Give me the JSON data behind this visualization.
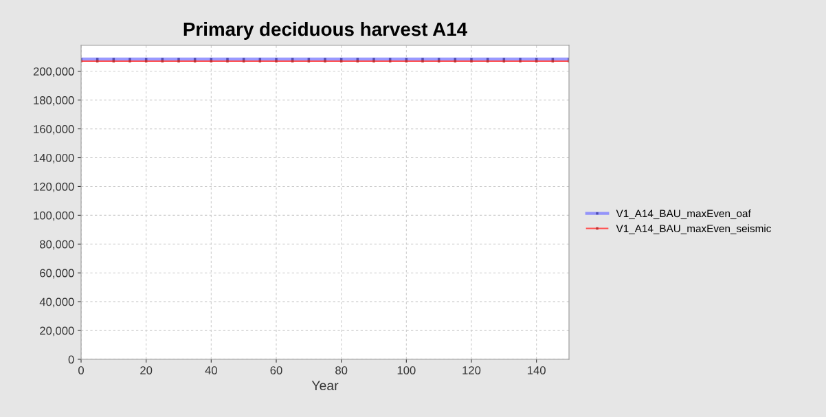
{
  "chart_data": {
    "type": "line",
    "title": "Primary deciduous harvest A14",
    "xlabel": "Year",
    "x": [
      0,
      5,
      10,
      15,
      20,
      25,
      30,
      35,
      40,
      45,
      50,
      55,
      60,
      65,
      70,
      75,
      80,
      85,
      90,
      95,
      100,
      105,
      110,
      115,
      120,
      125,
      130,
      135,
      140,
      145,
      150
    ],
    "series": [
      {
        "name": "V1_A14_BAU_maxEven_oaf",
        "color": "#7f7fff",
        "values": [
          208500,
          208500,
          208500,
          208500,
          208500,
          208500,
          208500,
          208500,
          208500,
          208500,
          208500,
          208500,
          208500,
          208500,
          208500,
          208500,
          208500,
          208500,
          208500,
          208500,
          208500,
          208500,
          208500,
          208500,
          208500,
          208500,
          208500,
          208500,
          208500,
          208500,
          208500
        ]
      },
      {
        "name": "V1_A14_BAU_maxEven_seismic",
        "color": "#ff5050",
        "values": [
          207000,
          207000,
          207000,
          207000,
          207000,
          207000,
          207000,
          207000,
          207000,
          207000,
          207000,
          207000,
          207000,
          207000,
          207000,
          207000,
          207000,
          207000,
          207000,
          207000,
          207000,
          207000,
          207000,
          207000,
          207000,
          207000,
          207000,
          207000,
          207000,
          207000,
          207000
        ]
      }
    ],
    "xlim": [
      0,
      150
    ],
    "xticks": [
      0,
      20,
      40,
      60,
      80,
      100,
      120,
      140
    ],
    "ylim": [
      0,
      218000
    ],
    "yticks": [
      {
        "value": 0,
        "label": "0"
      },
      {
        "value": 20000,
        "label": "20,000"
      },
      {
        "value": 40000,
        "label": "40,000"
      },
      {
        "value": 60000,
        "label": "60,000"
      },
      {
        "value": 80000,
        "label": "80,000"
      },
      {
        "value": 100000,
        "label": "100,000"
      },
      {
        "value": 120000,
        "label": "120,000"
      },
      {
        "value": 140000,
        "label": "140,000"
      },
      {
        "value": 160000,
        "label": "160,000"
      },
      {
        "value": 180000,
        "label": "180,000"
      },
      {
        "value": 200000,
        "label": "200,000"
      }
    ],
    "grid": true,
    "legend": "right",
    "marker": "square"
  }
}
